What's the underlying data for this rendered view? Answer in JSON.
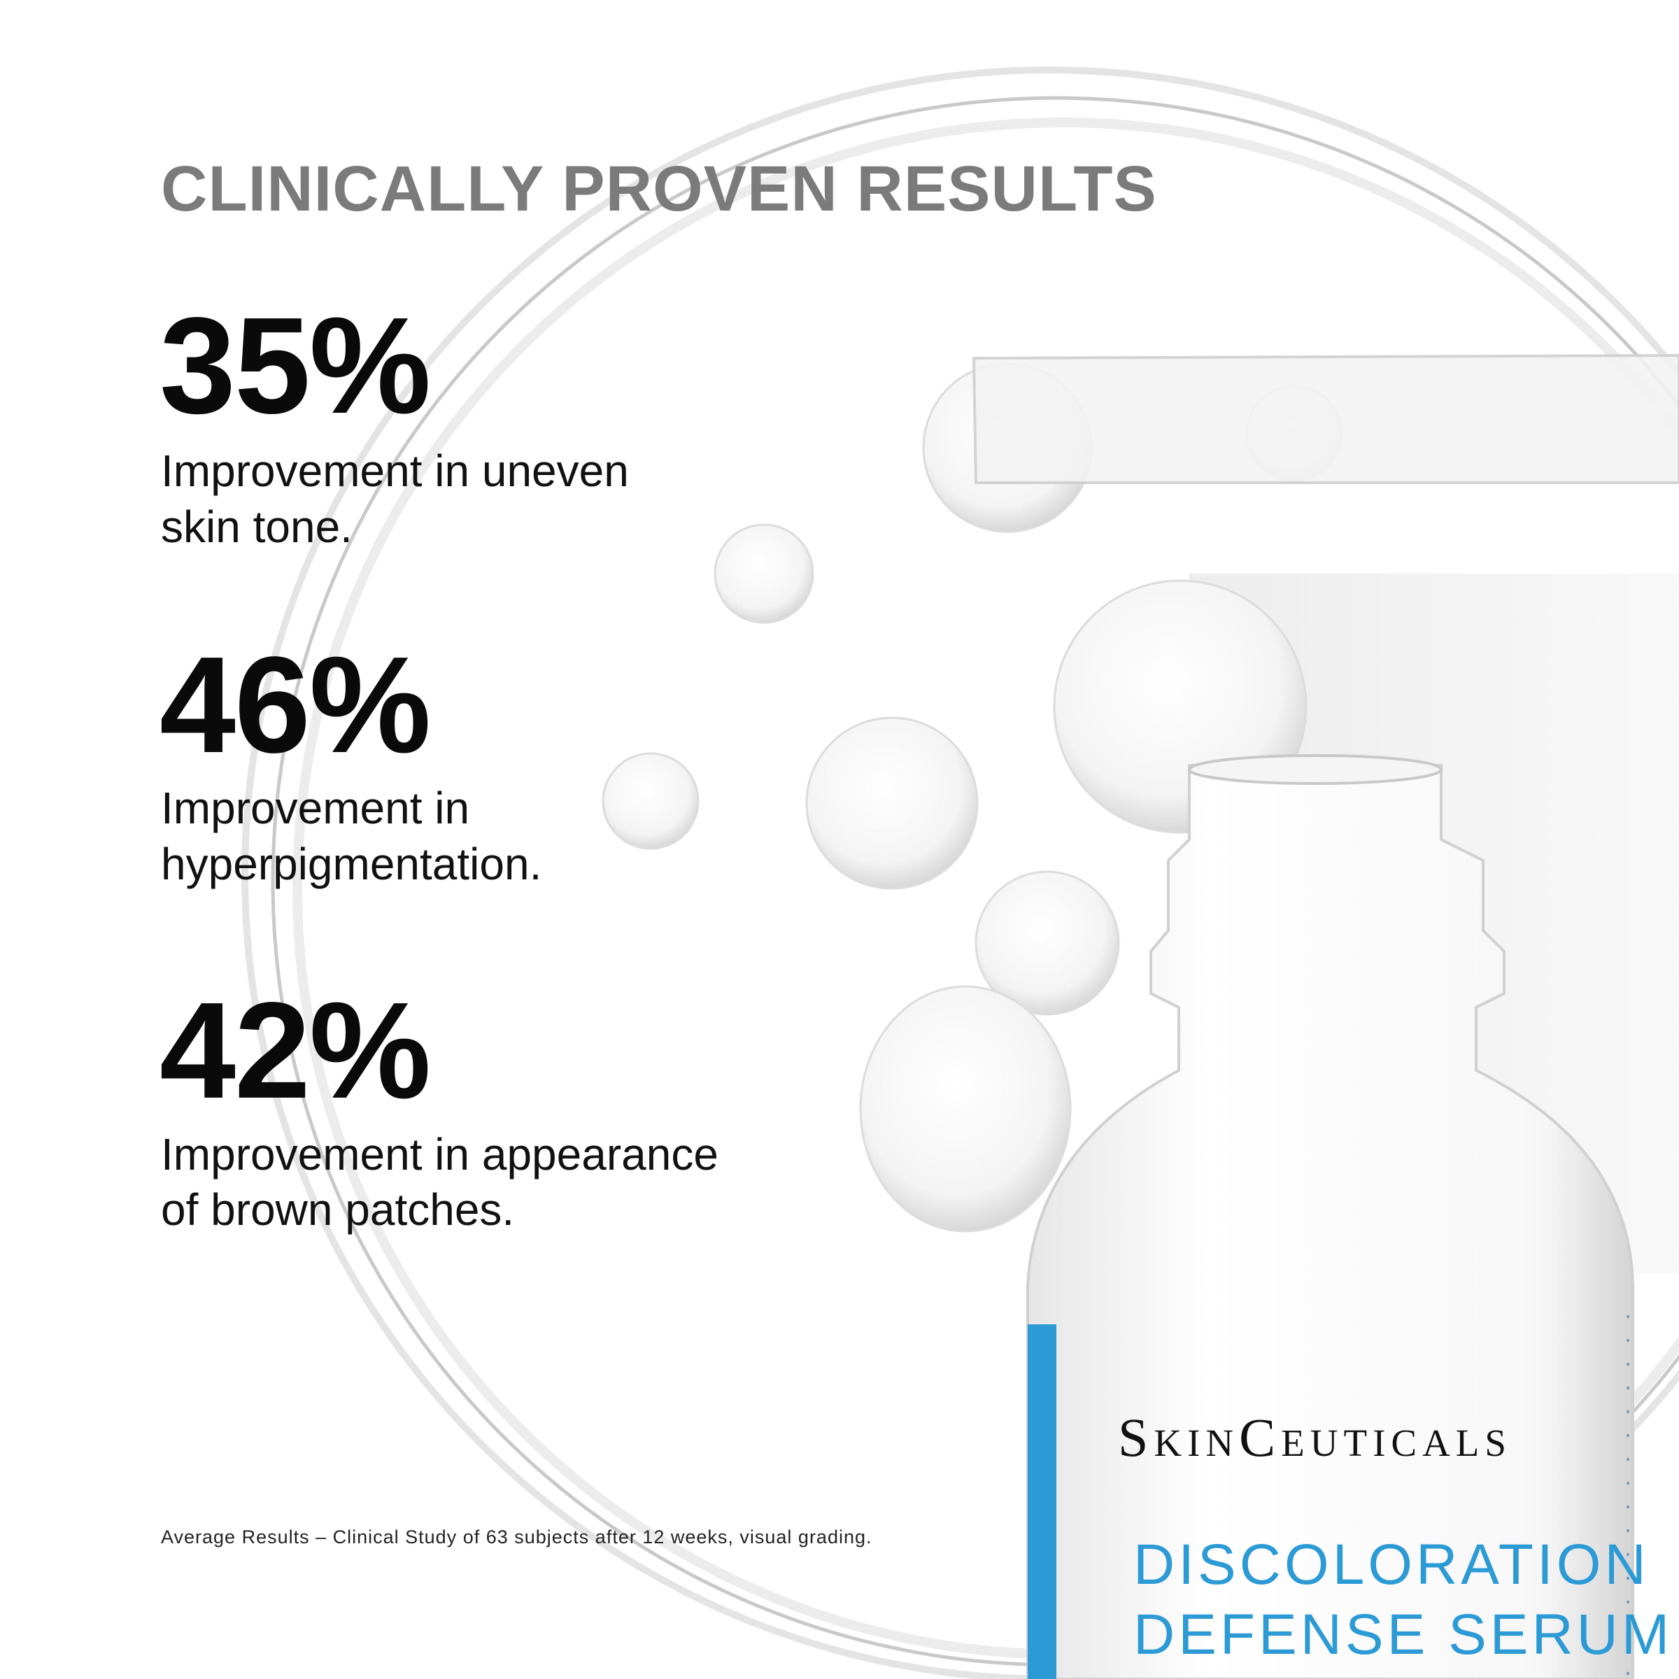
{
  "header": {
    "title": "CLINICALLY PROVEN RESULTS"
  },
  "stats": [
    {
      "value": "35%",
      "lines": [
        "Improvement in uneven",
        "skin tone."
      ]
    },
    {
      "value": "46%",
      "lines": [
        "Improvement in",
        "hyperpigmentation."
      ]
    },
    {
      "value": "42%",
      "lines": [
        "Improvement in appearance",
        "of brown patches."
      ]
    }
  ],
  "footnote": "Average Results – Clinical Study of 63  subjects after 12 weeks, visual grading.",
  "product": {
    "brand": "SkinCeuticals",
    "name_lines": [
      "DISCOLORATION",
      "DEFENSE SERUM"
    ]
  }
}
